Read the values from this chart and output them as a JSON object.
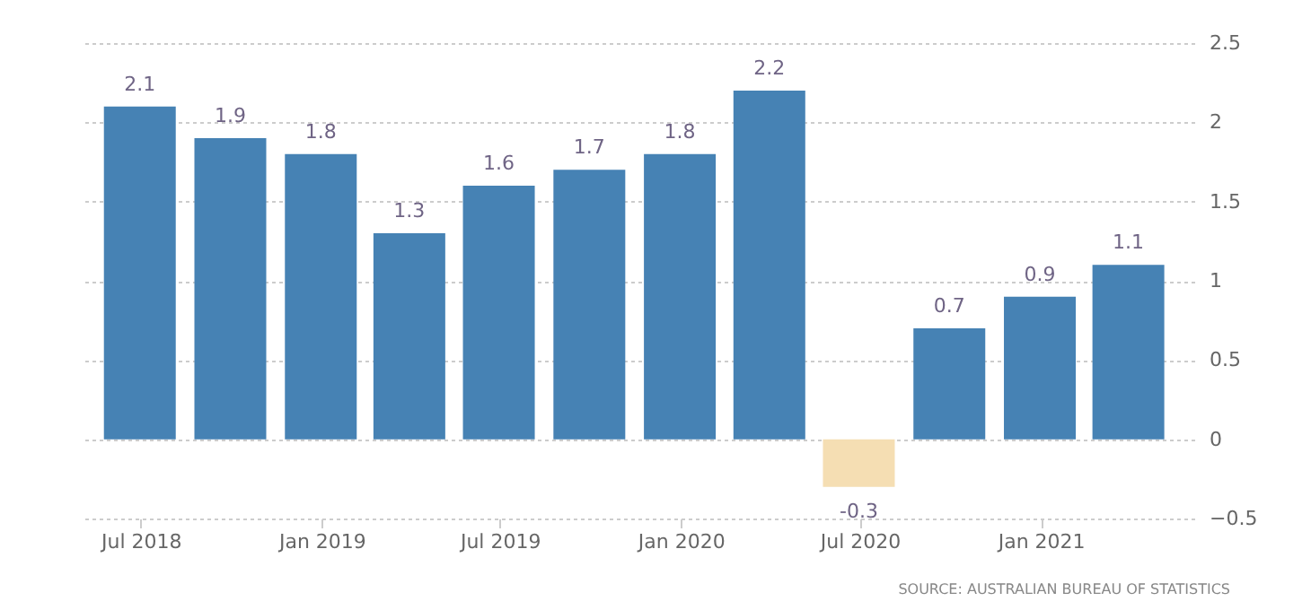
{
  "chart_data": {
    "type": "bar",
    "x": [
      "2018-06-30",
      "2018-09-30",
      "2018-12-31",
      "2019-03-31",
      "2019-06-30",
      "2019-09-30",
      "2019-12-31",
      "2020-03-31",
      "2020-06-30",
      "2020-09-30",
      "2020-12-31",
      "2021-03-31"
    ],
    "values": [
      2.1,
      1.9,
      1.8,
      1.3,
      1.6,
      1.7,
      1.8,
      2.2,
      -0.3,
      0.7,
      0.9,
      1.1
    ],
    "colors": [
      "#4682b4",
      "#4682b4",
      "#4682b4",
      "#4682b4",
      "#4682b4",
      "#4682b4",
      "#4682b4",
      "#4682b4",
      "#f5deb3",
      "#4682b4",
      "#4682b4",
      "#4682b4"
    ],
    "xlim": [
      "2018-05-01",
      "2021-06-06"
    ],
    "xticks": [
      {
        "value": "2018-07-01",
        "label": "Jul 2018"
      },
      {
        "value": "2019-01-01",
        "label": "Jan 2019"
      },
      {
        "value": "2019-07-01",
        "label": "Jul 2019"
      },
      {
        "value": "2020-01-01",
        "label": "Jan 2020"
      },
      {
        "value": "2020-07-01",
        "label": "Jul 2020"
      },
      {
        "value": "2021-01-01",
        "label": "Jan 2021"
      }
    ],
    "ylim": [
      -0.5,
      2.5
    ],
    "yticks": [
      -0.5,
      0,
      0.5,
      1,
      1.5,
      2,
      2.5
    ],
    "grid": "y",
    "legend": false,
    "data_labels": true,
    "annotations": [
      "SOURCE: AUSTRALIAN BUREAU OF STATISTICS"
    ]
  }
}
